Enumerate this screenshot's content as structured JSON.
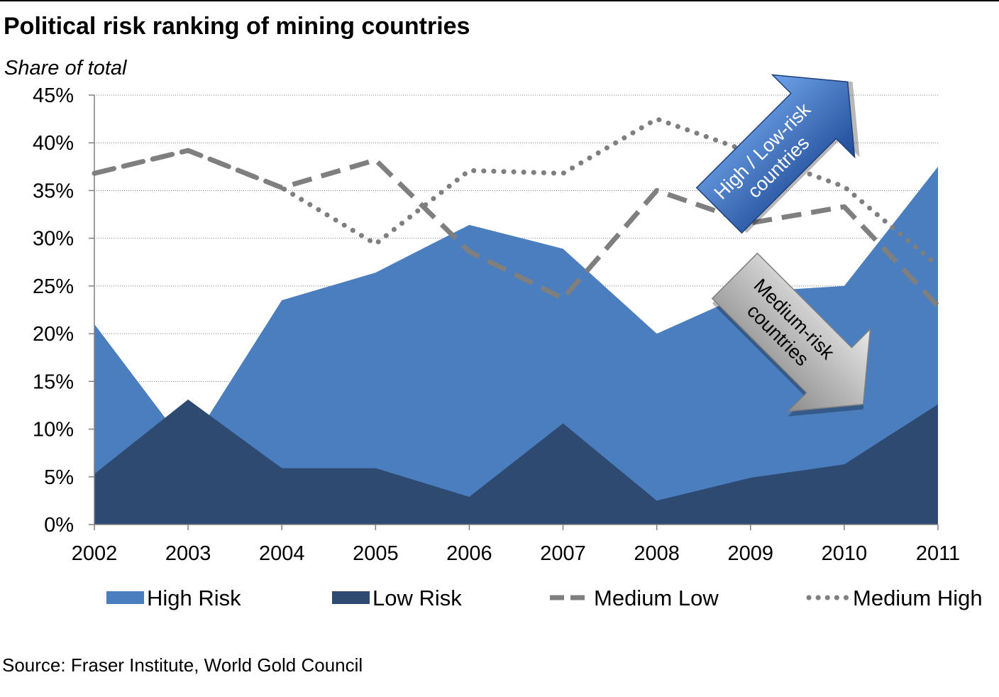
{
  "title": "Political risk ranking of mining countries",
  "subtitle": "Share of total",
  "source": "Source: Fraser Institute, World Gold Council",
  "chart_data": {
    "type": "area",
    "x": [
      "2002",
      "2003",
      "2004",
      "2005",
      "2006",
      "2007",
      "2008",
      "2009",
      "2010",
      "2011"
    ],
    "ylim": [
      0,
      45
    ],
    "yticks": [
      "0%",
      "5%",
      "10%",
      "15%",
      "20%",
      "25%",
      "30%",
      "35%",
      "40%",
      "45%"
    ],
    "grid": true,
    "legend_position": "bottom",
    "series": [
      {
        "name": "High Risk",
        "kind": "area",
        "color": "#4a7ebf",
        "values": [
          21.0,
          8.0,
          23.5,
          26.4,
          31.4,
          28.9,
          20.0,
          24.4,
          25.0,
          37.5
        ]
      },
      {
        "name": "Low Risk",
        "kind": "area",
        "color": "#2e4a71",
        "values": [
          5.3,
          13.1,
          5.9,
          5.9,
          2.9,
          10.6,
          2.5,
          4.9,
          6.3,
          12.6
        ]
      },
      {
        "name": "Medium Low",
        "kind": "dashed-line",
        "color": "#7f7f7f",
        "values": [
          36.8,
          39.2,
          35.3,
          38.2,
          28.6,
          23.7,
          35.0,
          31.6,
          33.3,
          22.9
        ]
      },
      {
        "name": "Medium High",
        "kind": "dotted-line",
        "color": "#7f7f7f",
        "values": [
          36.8,
          39.2,
          35.3,
          29.4,
          37.1,
          36.8,
          42.5,
          39.0,
          35.4,
          27.1
        ]
      }
    ],
    "annotations": [
      {
        "text": [
          "High / Low-risk",
          "countries"
        ],
        "shape": "arrow-up-right",
        "color": "#2e5caa"
      },
      {
        "text": [
          "Medium-risk",
          "countries"
        ],
        "shape": "arrow-down-right",
        "color": "#a6a6a6"
      }
    ]
  }
}
